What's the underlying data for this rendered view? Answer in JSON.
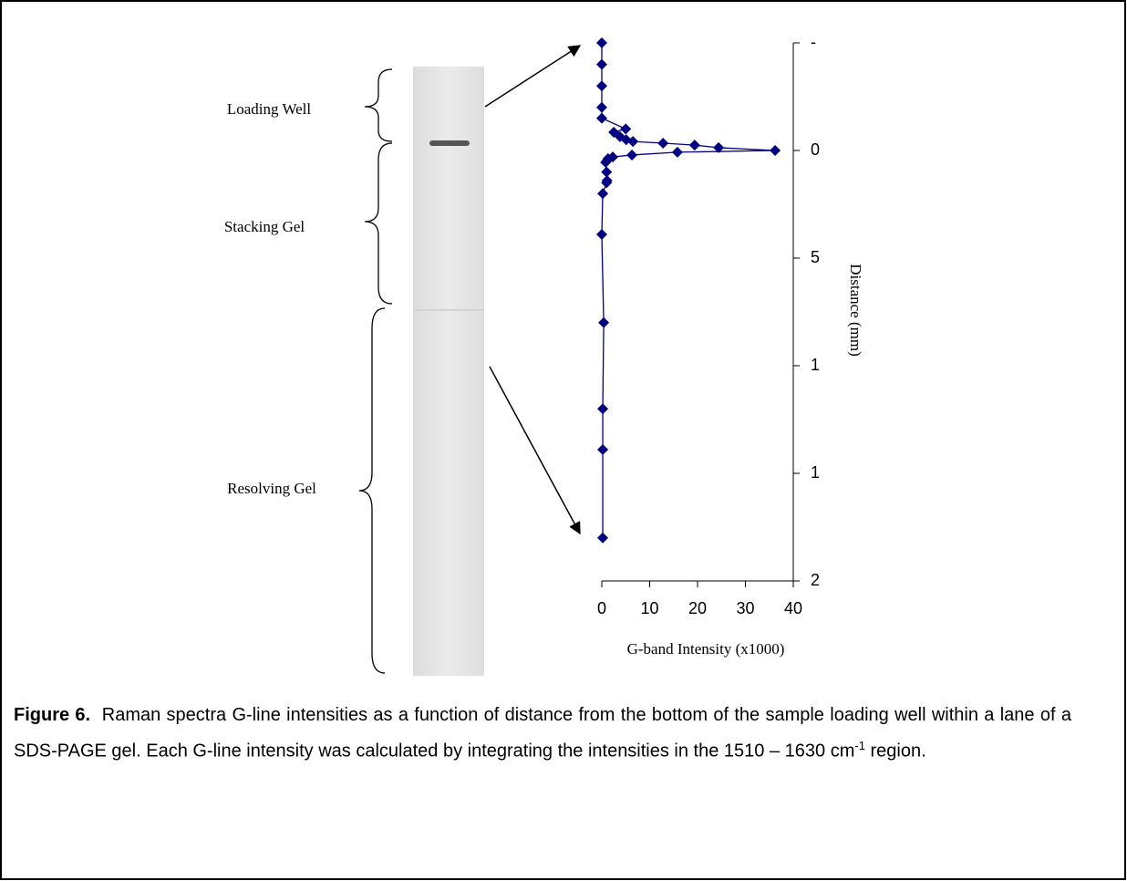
{
  "chart_data": {
    "type": "line",
    "marker": "diamond",
    "color": "#000080",
    "xlabel": "G-band Intensity (x1000)",
    "ylabel": "Distance (mm)",
    "x": [
      0,
      0,
      0,
      0,
      0,
      5.0,
      2.5,
      3.8,
      5.1,
      6.5,
      12.8,
      19.4,
      24.4,
      36.2,
      15.8,
      6.3,
      2.3,
      1.3,
      1.1,
      0.8,
      1.0,
      1.1,
      1.0,
      0.2,
      0,
      0.4,
      0.2,
      0.2,
      0.2
    ],
    "values": [
      -5,
      -4,
      -3,
      -2,
      -1.5,
      -1.0,
      -0.85,
      -0.64,
      -0.5,
      -0.42,
      -0.34,
      -0.25,
      -0.13,
      0,
      0.08,
      0.21,
      0.3,
      0.38,
      0.47,
      0.55,
      1.0,
      1.4,
      1.5,
      2.0,
      3.9,
      8.0,
      12.0,
      13.9,
      18.0
    ],
    "xlim": [
      0,
      40
    ],
    "xticks": [
      0,
      10,
      20,
      30,
      40
    ],
    "ylim": [
      -5,
      20
    ],
    "y_inverted": true,
    "yticks": [
      {
        "value": -5,
        "label": "-"
      },
      0,
      5,
      {
        "value": 10,
        "label": "1"
      },
      {
        "value": 15,
        "label": "1"
      },
      {
        "value": 20,
        "label": "2"
      }
    ]
  },
  "gel_labels": [
    "Loading Well",
    "Stacking Gel",
    "Resolving Gel"
  ],
  "caption": {
    "label": "Figure 6.",
    "text_before": "Raman spectra G-line intensities as a function of distance from the bottom of the sample loading well within a lane of a SDS-PAGE gel.  Each G-line intensity was calculated by integrating the intensities in the 1510 – 1630 cm",
    "superscript": "-1",
    "text_after": " region."
  }
}
